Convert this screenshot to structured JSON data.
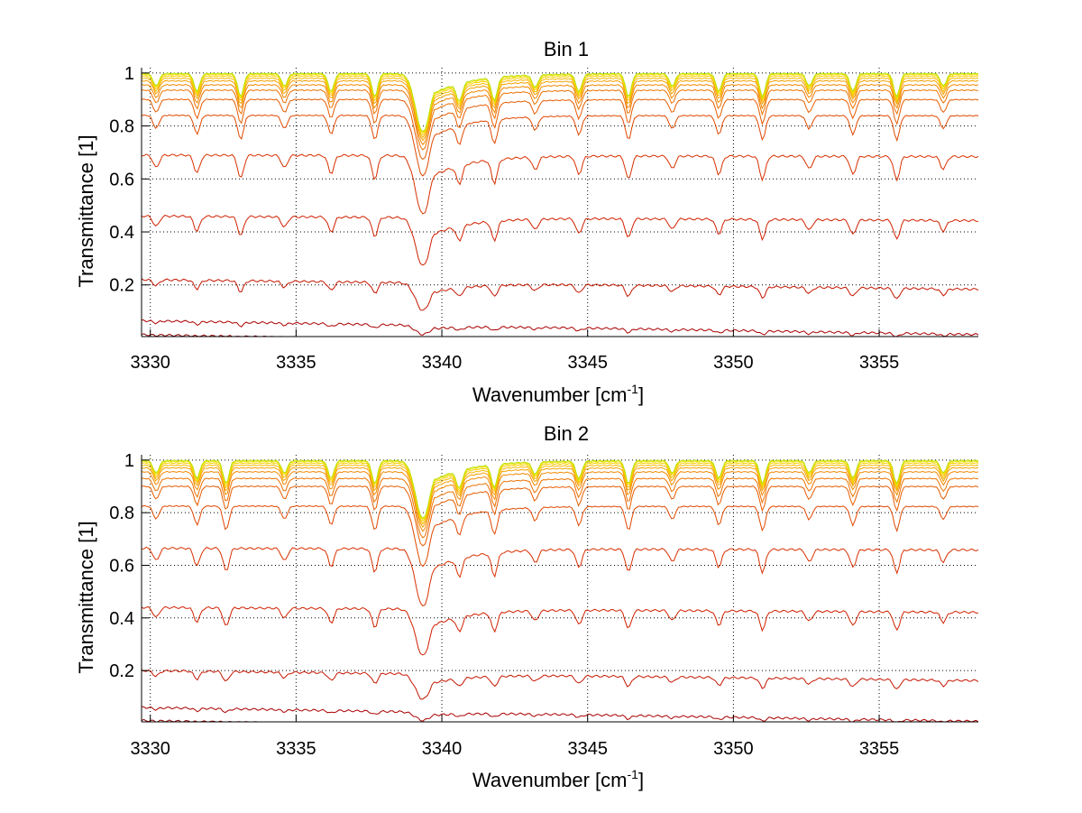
{
  "chart_data": [
    {
      "type": "line",
      "title": "Bin 1",
      "xlabel": "Wavenumber [cm",
      "xlabel_sup": "-1",
      "xlabel_end": "]",
      "ylabel": "Transmittance [1]",
      "xlim": [
        3329.7,
        3358.4
      ],
      "ylim": [
        0.005,
        1.02
      ],
      "xticks": [
        3330,
        3335,
        3340,
        3345,
        3350,
        3355
      ],
      "xtick_labels": [
        "3330",
        "3335",
        "3340",
        "3345",
        "3350",
        "3355"
      ],
      "yticks": [
        0.2,
        0.4,
        0.6,
        0.8,
        1
      ],
      "ytick_labels": [
        "0.2",
        "0.4",
        "0.6",
        "0.8",
        "1"
      ],
      "grid": true,
      "legend": "none",
      "colormap": "autumn (dark red to yellow)",
      "series_baselines": [
        0.012,
        0.065,
        0.22,
        0.46,
        0.69,
        0.84,
        0.9,
        0.935,
        0.955,
        0.97,
        0.98,
        0.988,
        0.994,
        0.998
      ],
      "series_colors": [
        "#8b0000",
        "#aa0000",
        "#c41500",
        "#d02000",
        "#d83000",
        "#e04800",
        "#e65c00",
        "#ec7200",
        "#f28800",
        "#f5a000",
        "#f8b800",
        "#fad000",
        "#f0e000",
        "#b8e000"
      ],
      "lines": [
        3330.2,
        3331.6,
        3333.1,
        3334.6,
        3336.2,
        3337.7,
        3339.35,
        3340.6,
        3341.8,
        3343.2,
        3344.7,
        3346.4,
        3347.9,
        3349.5,
        3351.0,
        3352.6,
        3354.1,
        3355.6,
        3357.2
      ]
    },
    {
      "type": "line",
      "title": "Bin 2",
      "xlabel": "Wavenumber [cm",
      "xlabel_sup": "-1",
      "xlabel_end": "]",
      "ylabel": "Transmittance [1]",
      "xlim": [
        3329.7,
        3358.4
      ],
      "ylim": [
        0.005,
        1.02
      ],
      "xticks": [
        3330,
        3335,
        3340,
        3345,
        3350,
        3355
      ],
      "xtick_labels": [
        "3330",
        "3335",
        "3340",
        "3345",
        "3350",
        "3355"
      ],
      "yticks": [
        0.2,
        0.4,
        0.6,
        0.8,
        1
      ],
      "ytick_labels": [
        "0.2",
        "0.4",
        "0.6",
        "0.8",
        "1"
      ],
      "grid": true,
      "legend": "none",
      "colormap": "autumn (dark red to yellow)",
      "series_baselines": [
        0.01,
        0.06,
        0.2,
        0.44,
        0.665,
        0.825,
        0.9,
        0.93,
        0.955,
        0.97,
        0.98,
        0.988,
        0.994,
        0.998
      ],
      "series_colors": [
        "#8b0000",
        "#aa0000",
        "#c41500",
        "#d02000",
        "#d83000",
        "#e04800",
        "#e65c00",
        "#ec7200",
        "#f28800",
        "#f5a000",
        "#f8b800",
        "#fad000",
        "#f0e000",
        "#b8e000"
      ],
      "lines": [
        3330.2,
        3331.6,
        3332.6,
        3334.6,
        3336.2,
        3337.7,
        3339.35,
        3340.6,
        3341.8,
        3343.2,
        3344.7,
        3346.4,
        3347.9,
        3349.5,
        3351.0,
        3352.6,
        3354.1,
        3355.6,
        3357.2
      ]
    }
  ]
}
